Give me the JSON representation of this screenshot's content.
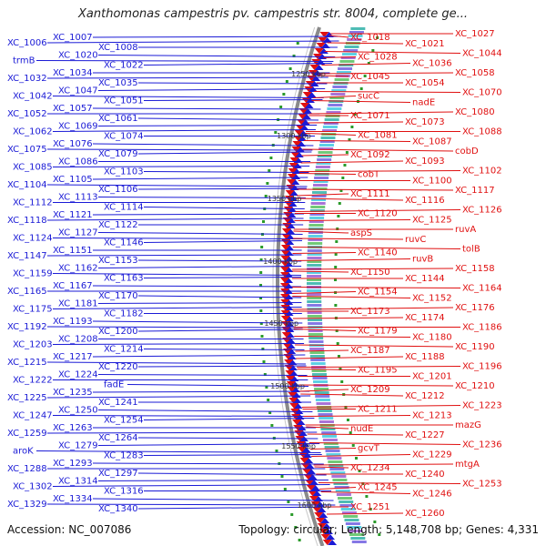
{
  "title": "Xanthomonas campestris pv. campestris str. 8004, complete ge...",
  "footer": {
    "accession": "Accession: NC_007086",
    "summary": "Topology: circular; Length: 5,148,708 bp; Genes: 4,331"
  },
  "kbp_marks": [
    "1250 kbp",
    "1300 kbp",
    "1350 kbp",
    "1400 kbp",
    "1450 kbp",
    "1500 kbp",
    "1550 kbp",
    "1600 kbp"
  ],
  "left_labels": [
    "XC_1006",
    "XC_1007",
    "XC_1008",
    "trmB",
    "XC_1020",
    "XC_1022",
    "XC_1032",
    "XC_1034",
    "XC_1035",
    "XC_1042",
    "XC_1047",
    "XC_1051",
    "XC_1052",
    "XC_1057",
    "XC_1061",
    "XC_1062",
    "XC_1069",
    "XC_1074",
    "XC_1075",
    "XC_1076",
    "XC_1079",
    "XC_1085",
    "XC_1086",
    "XC_1103",
    "XC_1104",
    "XC_1105",
    "XC_1106",
    "XC_1112",
    "XC_1113",
    "XC_1114",
    "XC_1118",
    "XC_1121",
    "XC_1122",
    "XC_1124",
    "XC_1127",
    "XC_1146",
    "XC_1147",
    "XC_1151",
    "XC_1153",
    "XC_1159",
    "XC_1162",
    "XC_1163",
    "XC_1165",
    "XC_1167",
    "XC_1170",
    "XC_1175",
    "XC_1181",
    "XC_1182",
    "XC_1192",
    "XC_1193",
    "XC_1200",
    "XC_1203",
    "XC_1208",
    "XC_1214",
    "XC_1215",
    "XC_1217",
    "XC_1220",
    "XC_1222",
    "XC_1224",
    "fadE",
    "XC_1225",
    "XC_1235",
    "XC_1241",
    "XC_1247",
    "XC_1250",
    "XC_1254",
    "XC_1259",
    "XC_1263",
    "XC_1264",
    "aroK",
    "XC_1279",
    "XC_1283",
    "XC_1288",
    "XC_1293",
    "XC_1297",
    "XC_1302",
    "XC_1314",
    "XC_1316",
    "XC_1329",
    "XC_1334",
    "XC_1340"
  ],
  "right_labels": [
    "XC_1018",
    "XC_1021",
    "XC_1027",
    "XC_1028",
    "XC_1036",
    "XC_1044",
    "XC_1045",
    "XC_1054",
    "XC_1058",
    "sucC",
    "nadE",
    "XC_1070",
    "XC_1071",
    "XC_1073",
    "XC_1080",
    "XC_1081",
    "XC_1087",
    "XC_1088",
    "XC_1092",
    "XC_1093",
    "cobD",
    "cobT",
    "XC_1100",
    "XC_1102",
    "XC_1111",
    "XC_1116",
    "XC_1117",
    "XC_1120",
    "XC_1125",
    "XC_1126",
    "aspS",
    "ruvC",
    "ruvA",
    "XC_1140",
    "ruvB",
    "tolB",
    "XC_1150",
    "XC_1144",
    "XC_1158",
    "XC_1154",
    "XC_1152",
    "XC_1164",
    "XC_1173",
    "XC_1174",
    "XC_1176",
    "XC_1179",
    "XC_1180",
    "XC_1186",
    "XC_1187",
    "XC_1188",
    "XC_1190",
    "XC_1195",
    "XC_1201",
    "XC_1196",
    "XC_1209",
    "XC_1212",
    "XC_1210",
    "XC_1211",
    "XC_1213",
    "XC_1223",
    "nudE",
    "XC_1227",
    "mazG",
    "gcvT",
    "XC_1229",
    "XC_1236",
    "XC_1234",
    "XC_1240",
    "mtgA",
    "XC_1245",
    "XC_1246",
    "XC_1253",
    "XC_1251",
    "XC_1260"
  ],
  "colors": {
    "left_strand": "#1a1ad6",
    "right_strand": "#e01010",
    "backbone": "#8a8a8a",
    "tick": "#2a9a2a"
  }
}
